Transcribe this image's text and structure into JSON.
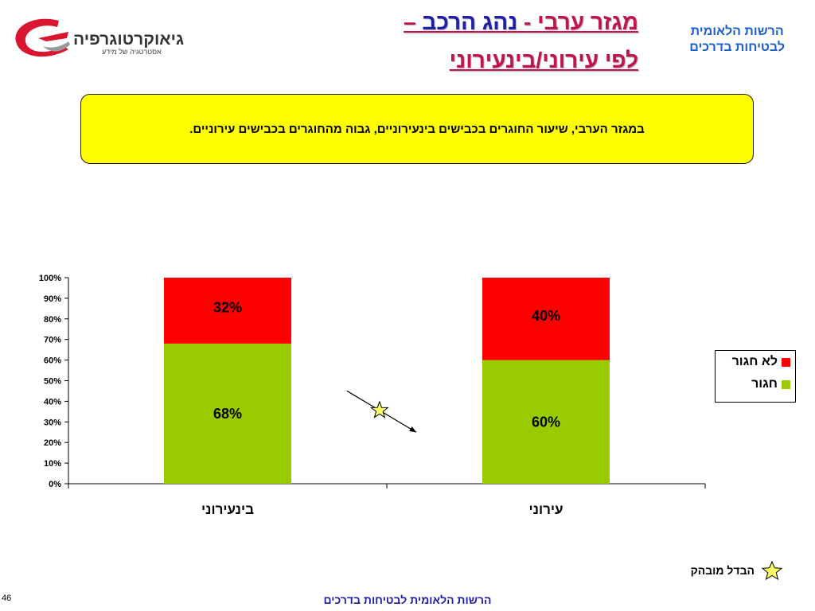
{
  "header": {
    "title_line1_part1": "מגזר ערבי -",
    "title_line1_part2": "נהג הרכב",
    "title_line1_dash": "–",
    "title_line2": "לפי עירוני/בינעירוני",
    "org_line1": "הרשות הלאומית",
    "org_line2": "לבטיחות בדרכים",
    "logo_name": "גיאוקרטוגרפיה",
    "logo_tagline": "אסטרטגיה של מידע"
  },
  "callout": {
    "text": "במגזר הערבי, שיעור החוגרים בכבישים בינעירוניים, גבוה מהחוגרים בכבישים עירוניים."
  },
  "legend": {
    "not_belted": "לא חגור",
    "belted": "חגור"
  },
  "significance": {
    "label": "הבדל מובהק"
  },
  "footer": {
    "page_number": "46",
    "org": "הרשות הלאומית לבטיחות בדרכים"
  },
  "colors": {
    "belted": "#99cc00",
    "not_belted": "#ff0000",
    "title": "#c0144f",
    "title_blue": "#1f1fa3",
    "org": "#1a5fcc",
    "callout_bg": "#ffff00",
    "star": "#ffff66"
  },
  "chart_data": {
    "type": "bar",
    "stacked": true,
    "categories": [
      "בינעירוני",
      "עירוני"
    ],
    "series": [
      {
        "name": "חגור",
        "values": [
          68,
          60
        ],
        "labels": [
          "68%",
          "60%"
        ],
        "color": "#99cc00"
      },
      {
        "name": "לא חגור",
        "values": [
          32,
          40
        ],
        "labels": [
          "32%",
          "40%"
        ],
        "color": "#ff0000"
      }
    ],
    "yticks": [
      "0%",
      "10%",
      "20%",
      "30%",
      "40%",
      "50%",
      "60%",
      "70%",
      "80%",
      "90%",
      "100%"
    ],
    "ylim": [
      0,
      100
    ],
    "legend_position": "right",
    "annotation": "significant-difference-star"
  }
}
